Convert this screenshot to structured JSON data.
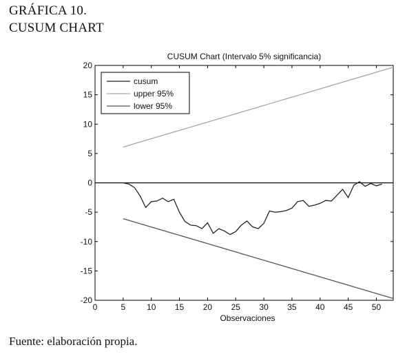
{
  "heading": {
    "line1": "GRÁFICA 10.",
    "line2": "CUSUM CHART"
  },
  "source_note": "Fuente: elaboración propia.",
  "chart_data": {
    "type": "line",
    "title": "CUSUM Chart (Intervalo 5% significancia)",
    "xlabel": "Observaciones",
    "ylabel": "",
    "xlim": [
      0,
      53
    ],
    "ylim": [
      -20,
      20
    ],
    "xticks": [
      0,
      5,
      10,
      15,
      20,
      25,
      30,
      35,
      40,
      45,
      50
    ],
    "yticks": [
      -20,
      -15,
      -10,
      -5,
      0,
      5,
      10,
      15,
      20
    ],
    "grid": false,
    "zero_line": true,
    "legend_position": "top-left",
    "series": [
      {
        "name": "cusum",
        "color": "#222222",
        "x": [
          5,
          6,
          7,
          8,
          9,
          10,
          11,
          12,
          13,
          14,
          15,
          16,
          17,
          18,
          19,
          20,
          21,
          22,
          23,
          24,
          25,
          26,
          27,
          28,
          29,
          30,
          31,
          32,
          33,
          34,
          35,
          36,
          37,
          38,
          39,
          40,
          41,
          42,
          43,
          44,
          45,
          46,
          47,
          48,
          49,
          50,
          51
        ],
        "y": [
          0,
          -0.2,
          -0.8,
          -2.2,
          -4.2,
          -3.2,
          -3.1,
          -2.6,
          -3.2,
          -2.8,
          -5.0,
          -6.6,
          -7.2,
          -7.3,
          -7.8,
          -6.8,
          -8.6,
          -7.8,
          -8.2,
          -8.8,
          -8.3,
          -7.2,
          -6.5,
          -7.5,
          -7.8,
          -6.9,
          -4.8,
          -5.0,
          -4.9,
          -4.7,
          -4.3,
          -3.2,
          -3.0,
          -4.0,
          -3.8,
          -3.5,
          -3.0,
          -3.1,
          -2.1,
          -1.1,
          -2.5,
          -0.4,
          0.2,
          -0.6,
          -0.1,
          -0.5,
          -0.2
        ]
      },
      {
        "name": "upper 95%",
        "color": "#a6a6a6",
        "x": [
          5,
          53
        ],
        "y": [
          6.1,
          19.7
        ]
      },
      {
        "name": "lower 95%",
        "color": "#555555",
        "x": [
          5,
          53
        ],
        "y": [
          -6.1,
          -19.7
        ]
      }
    ]
  }
}
